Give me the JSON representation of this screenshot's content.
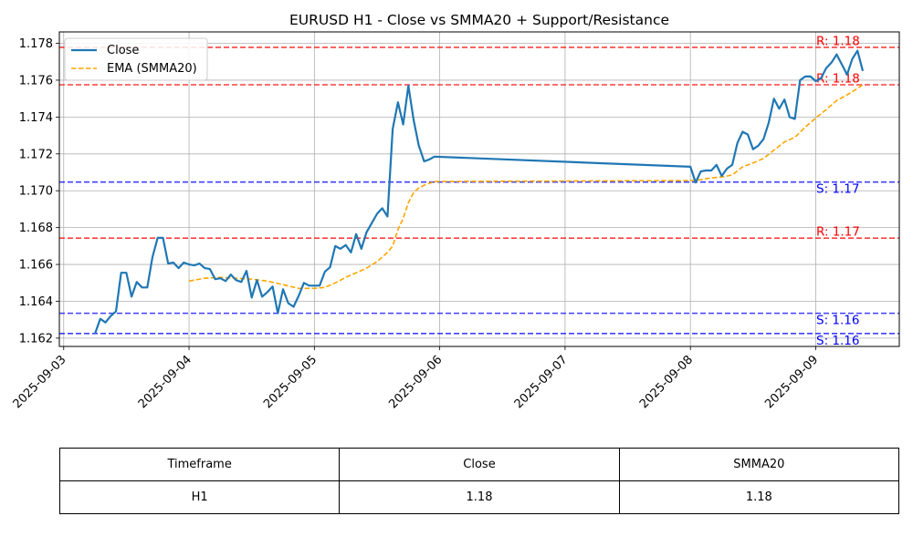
{
  "chart_data": {
    "type": "line",
    "title": "EURUSD H1 - Close vs SMMA20 + Support/Resistance",
    "xlabel": "",
    "ylabel": "",
    "x_tick_labels": [
      "2025-09-03",
      "2025-09-04",
      "2025-09-05",
      "2025-09-06",
      "2025-09-07",
      "2025-09-08",
      "2025-09-09"
    ],
    "x_range": [
      "2025-09-02 23:10",
      "2025-09-09 16:00"
    ],
    "y_ticks": [
      "1.162",
      "1.164",
      "1.166",
      "1.168",
      "1.170",
      "1.172",
      "1.174",
      "1.176",
      "1.178"
    ],
    "ylim": [
      1.16155,
      1.17862
    ],
    "grid": true,
    "legend": {
      "position": "top-left",
      "entries": [
        "Close",
        "EMA (SMMA20)"
      ]
    },
    "colors": {
      "close": "#1f77b4",
      "smma": "#ffa500",
      "resistance": "#ff0000",
      "support": "#0000ff",
      "grid": "#b0b0b0"
    },
    "series": [
      {
        "name": "Close",
        "points": [
          [
            "2025-09-03 06:00",
            1.16225
          ],
          [
            "2025-09-03 07:00",
            1.16305
          ],
          [
            "2025-09-03 08:00",
            1.16285
          ],
          [
            "2025-09-03 09:00",
            1.1632
          ],
          [
            "2025-09-03 10:00",
            1.16345
          ],
          [
            "2025-09-03 11:00",
            1.16555
          ],
          [
            "2025-09-03 12:00",
            1.16555
          ],
          [
            "2025-09-03 13:00",
            1.16425
          ],
          [
            "2025-09-03 14:00",
            1.16505
          ],
          [
            "2025-09-03 15:00",
            1.16475
          ],
          [
            "2025-09-03 16:00",
            1.16475
          ],
          [
            "2025-09-03 17:00",
            1.1664
          ],
          [
            "2025-09-03 18:00",
            1.16745
          ],
          [
            "2025-09-03 19:00",
            1.16745
          ],
          [
            "2025-09-03 20:00",
            1.16605
          ],
          [
            "2025-09-03 21:00",
            1.1661
          ],
          [
            "2025-09-03 22:00",
            1.1658
          ],
          [
            "2025-09-03 23:00",
            1.1661
          ],
          [
            "2025-09-04 00:00",
            1.166
          ],
          [
            "2025-09-04 01:00",
            1.16595
          ],
          [
            "2025-09-04 02:00",
            1.16605
          ],
          [
            "2025-09-04 03:00",
            1.1658
          ],
          [
            "2025-09-04 04:00",
            1.16575
          ],
          [
            "2025-09-04 05:00",
            1.1652
          ],
          [
            "2025-09-04 06:00",
            1.16525
          ],
          [
            "2025-09-04 07:00",
            1.1651
          ],
          [
            "2025-09-04 08:00",
            1.16545
          ],
          [
            "2025-09-04 09:00",
            1.16515
          ],
          [
            "2025-09-04 10:00",
            1.16505
          ],
          [
            "2025-09-04 11:00",
            1.16565
          ],
          [
            "2025-09-04 12:00",
            1.1642
          ],
          [
            "2025-09-04 13:00",
            1.16515
          ],
          [
            "2025-09-04 14:00",
            1.16425
          ],
          [
            "2025-09-04 15:00",
            1.1645
          ],
          [
            "2025-09-04 16:00",
            1.1648
          ],
          [
            "2025-09-04 17:00",
            1.16335
          ],
          [
            "2025-09-04 18:00",
            1.16465
          ],
          [
            "2025-09-04 19:00",
            1.1639
          ],
          [
            "2025-09-04 20:00",
            1.1637
          ],
          [
            "2025-09-04 21:00",
            1.1643
          ],
          [
            "2025-09-04 22:00",
            1.165
          ],
          [
            "2025-09-04 23:00",
            1.16485
          ],
          [
            "2025-09-05 00:00",
            1.16485
          ],
          [
            "2025-09-05 01:00",
            1.16485
          ],
          [
            "2025-09-05 02:00",
            1.1656
          ],
          [
            "2025-09-05 03:00",
            1.16585
          ],
          [
            "2025-09-05 04:00",
            1.167
          ],
          [
            "2025-09-05 05:00",
            1.16685
          ],
          [
            "2025-09-05 06:00",
            1.16705
          ],
          [
            "2025-09-05 07:00",
            1.16665
          ],
          [
            "2025-09-05 08:00",
            1.16765
          ],
          [
            "2025-09-05 09:00",
            1.16685
          ],
          [
            "2025-09-05 10:00",
            1.16775
          ],
          [
            "2025-09-05 11:00",
            1.16825
          ],
          [
            "2025-09-05 12:00",
            1.16875
          ],
          [
            "2025-09-05 13:00",
            1.16905
          ],
          [
            "2025-09-05 14:00",
            1.1686
          ],
          [
            "2025-09-05 15:00",
            1.17335
          ],
          [
            "2025-09-05 16:00",
            1.1748
          ],
          [
            "2025-09-05 17:00",
            1.1736
          ],
          [
            "2025-09-05 18:00",
            1.1757
          ],
          [
            "2025-09-05 19:00",
            1.17385
          ],
          [
            "2025-09-05 20:00",
            1.17245
          ],
          [
            "2025-09-05 21:00",
            1.1716
          ],
          [
            "2025-09-05 22:00",
            1.1717
          ],
          [
            "2025-09-05 23:00",
            1.17185
          ],
          [
            "2025-09-08 00:00",
            1.1713
          ],
          [
            "2025-09-08 01:00",
            1.17045
          ],
          [
            "2025-09-08 02:00",
            1.17105
          ],
          [
            "2025-09-08 03:00",
            1.1711
          ],
          [
            "2025-09-08 04:00",
            1.1711
          ],
          [
            "2025-09-08 05:00",
            1.1714
          ],
          [
            "2025-09-08 06:00",
            1.1708
          ],
          [
            "2025-09-08 07:00",
            1.1712
          ],
          [
            "2025-09-08 08:00",
            1.1714
          ],
          [
            "2025-09-08 09:00",
            1.1726
          ],
          [
            "2025-09-08 10:00",
            1.1732
          ],
          [
            "2025-09-08 11:00",
            1.17305
          ],
          [
            "2025-09-08 12:00",
            1.17225
          ],
          [
            "2025-09-08 13:00",
            1.17245
          ],
          [
            "2025-09-08 14:00",
            1.1728
          ],
          [
            "2025-09-08 15:00",
            1.1737
          ],
          [
            "2025-09-08 16:00",
            1.175
          ],
          [
            "2025-09-08 17:00",
            1.17445
          ],
          [
            "2025-09-08 18:00",
            1.17495
          ],
          [
            "2025-09-08 19:00",
            1.174
          ],
          [
            "2025-09-08 20:00",
            1.1739
          ],
          [
            "2025-09-08 21:00",
            1.176
          ],
          [
            "2025-09-08 22:00",
            1.1762
          ],
          [
            "2025-09-08 23:00",
            1.1762
          ],
          [
            "2025-09-09 00:00",
            1.17595
          ],
          [
            "2025-09-09 01:00",
            1.1761
          ],
          [
            "2025-09-09 02:00",
            1.17665
          ],
          [
            "2025-09-09 03:00",
            1.17695
          ],
          [
            "2025-09-09 04:00",
            1.1774
          ],
          [
            "2025-09-09 05:00",
            1.17685
          ],
          [
            "2025-09-09 06:00",
            1.1763
          ],
          [
            "2025-09-09 07:00",
            1.17715
          ],
          [
            "2025-09-09 08:00",
            1.1776
          ],
          [
            "2025-09-09 09:00",
            1.1765
          ]
        ]
      },
      {
        "name": "EMA (SMMA20)",
        "points": [
          [
            "2025-09-04 00:00",
            1.1651
          ],
          [
            "2025-09-04 03:00",
            1.16525
          ],
          [
            "2025-09-04 06:00",
            1.1653
          ],
          [
            "2025-09-04 09:00",
            1.16525
          ],
          [
            "2025-09-04 12:00",
            1.1652
          ],
          [
            "2025-09-04 15:00",
            1.1651
          ],
          [
            "2025-09-04 18:00",
            1.1649
          ],
          [
            "2025-09-04 21:00",
            1.1647
          ],
          [
            "2025-09-05 00:00",
            1.1647
          ],
          [
            "2025-09-05 02:00",
            1.16475
          ],
          [
            "2025-09-05 04:00",
            1.165
          ],
          [
            "2025-09-05 06:00",
            1.1653
          ],
          [
            "2025-09-05 08:00",
            1.16555
          ],
          [
            "2025-09-05 10:00",
            1.1658
          ],
          [
            "2025-09-05 12:00",
            1.16615
          ],
          [
            "2025-09-05 14:00",
            1.16665
          ],
          [
            "2025-09-05 15:00",
            1.167
          ],
          [
            "2025-09-05 16:00",
            1.1679
          ],
          [
            "2025-09-05 17:00",
            1.1685
          ],
          [
            "2025-09-05 18:00",
            1.16935
          ],
          [
            "2025-09-05 19:00",
            1.1699
          ],
          [
            "2025-09-05 20:00",
            1.17015
          ],
          [
            "2025-09-05 21:00",
            1.1703
          ],
          [
            "2025-09-05 22:00",
            1.1704
          ],
          [
            "2025-09-05 23:00",
            1.1705
          ],
          [
            "2025-09-08 00:00",
            1.17055
          ],
          [
            "2025-09-08 02:00",
            1.1706
          ],
          [
            "2025-09-08 04:00",
            1.1707
          ],
          [
            "2025-09-08 06:00",
            1.17075
          ],
          [
            "2025-09-08 08:00",
            1.17085
          ],
          [
            "2025-09-08 10:00",
            1.1713
          ],
          [
            "2025-09-08 12:00",
            1.1715
          ],
          [
            "2025-09-08 14:00",
            1.17175
          ],
          [
            "2025-09-08 16:00",
            1.1722
          ],
          [
            "2025-09-08 18:00",
            1.17265
          ],
          [
            "2025-09-08 20:00",
            1.1729
          ],
          [
            "2025-09-08 22:00",
            1.17345
          ],
          [
            "2025-09-09 00:00",
            1.17395
          ],
          [
            "2025-09-09 02:00",
            1.1744
          ],
          [
            "2025-09-09 04:00",
            1.1749
          ],
          [
            "2025-09-09 06:00",
            1.1752
          ],
          [
            "2025-09-09 08:00",
            1.17555
          ],
          [
            "2025-09-09 09:00",
            1.17575
          ]
        ]
      }
    ],
    "levels": [
      {
        "kind": "resistance",
        "value": 1.17778,
        "label": "R: 1.18"
      },
      {
        "kind": "resistance",
        "value": 1.17575,
        "label": "R: 1.18"
      },
      {
        "kind": "support",
        "value": 1.17047,
        "label": "S: 1.17"
      },
      {
        "kind": "resistance",
        "value": 1.16743,
        "label": "R: 1.17"
      },
      {
        "kind": "support",
        "value": 1.16335,
        "label": "S: 1.16"
      },
      {
        "kind": "support",
        "value": 1.16225,
        "label": "S: 1.16"
      }
    ]
  },
  "table": {
    "headers": [
      "Timeframe",
      "Close",
      "SMMA20"
    ],
    "row": [
      "H1",
      "1.18",
      "1.18"
    ]
  }
}
